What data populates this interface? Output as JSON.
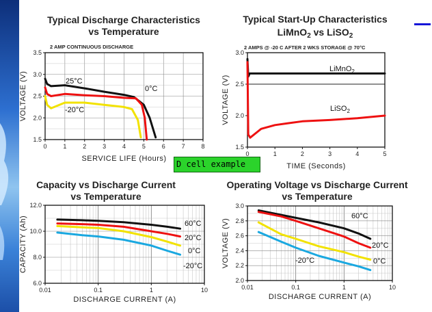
{
  "overlay_label": "D cell example",
  "colors": {
    "black": "#111111",
    "red": "#ee1111",
    "yellow": "#f2e200",
    "blue": "#1aa8e0",
    "link": "#1515d8"
  },
  "chart_data": [
    {
      "type": "line",
      "title": "Typical Discharge Characteristics\nvs Temperature",
      "subtitle": "2 AMP CONTINUOUS DISCHARGE",
      "xlabel": "SERVICE LIFE (Hours)",
      "ylabel": "VOLTAGE (V)",
      "xlim": [
        0,
        8
      ],
      "ylim": [
        1.5,
        3.5
      ],
      "xticks": [
        "0",
        "1",
        "2",
        "3",
        "4",
        "5",
        "6",
        "7",
        "8"
      ],
      "yticks": [
        "1.5",
        "2.0",
        "2.5",
        "3.0",
        "3.5"
      ],
      "grid": true,
      "series": [
        {
          "name": "25°C",
          "color": "black",
          "points": [
            [
              0,
              2.9
            ],
            [
              0.1,
              2.78
            ],
            [
              0.3,
              2.73
            ],
            [
              1,
              2.75
            ],
            [
              2,
              2.68
            ],
            [
              3,
              2.6
            ],
            [
              4,
              2.53
            ],
            [
              4.5,
              2.48
            ],
            [
              5,
              2.3
            ],
            [
              5.3,
              2.0
            ],
            [
              5.6,
              1.55
            ]
          ]
        },
        {
          "name": "0°C",
          "color": "red",
          "points": [
            [
              0,
              2.7
            ],
            [
              0.1,
              2.55
            ],
            [
              0.3,
              2.5
            ],
            [
              1,
              2.55
            ],
            [
              2,
              2.52
            ],
            [
              3,
              2.5
            ],
            [
              4,
              2.46
            ],
            [
              4.6,
              2.45
            ],
            [
              4.9,
              2.3
            ],
            [
              5.05,
              2.0
            ],
            [
              5.15,
              1.5
            ]
          ]
        },
        {
          "name": "-20°C",
          "color": "yellow",
          "points": [
            [
              0,
              2.5
            ],
            [
              0.1,
              2.3
            ],
            [
              0.3,
              2.22
            ],
            [
              1,
              2.35
            ],
            [
              2,
              2.35
            ],
            [
              3,
              2.3
            ],
            [
              4,
              2.25
            ],
            [
              4.4,
              2.2
            ],
            [
              4.7,
              1.95
            ],
            [
              4.85,
              1.55
            ]
          ]
        }
      ],
      "annotations": [
        "25°C",
        "0°C",
        "-20°C"
      ]
    },
    {
      "type": "line",
      "title": "Typical Start-Up Characteristics\nLiMnO2 vs LiSO2",
      "subtitle": "2 AMPS @ -20 C AFTER 2 WKS STORAGE @ 70°C",
      "xlabel": "TIME (Seconds)",
      "ylabel": "VOLTAGE (V)",
      "xlim": [
        0,
        5
      ],
      "ylim": [
        1.5,
        3.0
      ],
      "xticks": [
        "0",
        "1",
        "2",
        "3",
        "4",
        "5"
      ],
      "yticks": [
        "1.5",
        "2.0",
        "2.5",
        "3.0"
      ],
      "grid": false,
      "series": [
        {
          "name": "LiMnO2",
          "color": "black",
          "points": [
            [
              0,
              2.9
            ],
            [
              0.03,
              2.62
            ],
            [
              0.08,
              2.67
            ],
            [
              0.2,
              2.67
            ],
            [
              1,
              2.67
            ],
            [
              2,
              2.67
            ],
            [
              3,
              2.67
            ],
            [
              4,
              2.67
            ],
            [
              5,
              2.67
            ]
          ]
        },
        {
          "name": "LiSO2",
          "color": "red",
          "points": [
            [
              0,
              2.85
            ],
            [
              0.03,
              1.7
            ],
            [
              0.1,
              1.65
            ],
            [
              0.5,
              1.79
            ],
            [
              1,
              1.85
            ],
            [
              1.5,
              1.88
            ],
            [
              2,
              1.91
            ],
            [
              3,
              1.93
            ],
            [
              4,
              1.96
            ],
            [
              5,
              2.0
            ]
          ]
        }
      ],
      "annotations": [
        "LiMnO2",
        "LiSO2"
      ]
    },
    {
      "type": "line",
      "title": "Capacity vs Discharge Current\nvs Temperature",
      "xlabel": "DISCHARGE CURRENT (A)",
      "ylabel": "CAPACITY (Ah)",
      "xscale": "log",
      "xlim": [
        0.01,
        10
      ],
      "ylim": [
        6.0,
        12.0
      ],
      "xticks": [
        "0.01",
        "0.1",
        "1",
        "10"
      ],
      "yticks": [
        "6.0",
        "8.0",
        "10.0",
        "12.0"
      ],
      "grid": true,
      "series": [
        {
          "name": "60°C",
          "color": "black",
          "points": [
            [
              0.017,
              10.9
            ],
            [
              0.05,
              10.85
            ],
            [
              0.1,
              10.8
            ],
            [
              0.3,
              10.7
            ],
            [
              1,
              10.5
            ],
            [
              2,
              10.35
            ],
            [
              3.5,
              10.2
            ]
          ]
        },
        {
          "name": "20°C",
          "color": "red",
          "points": [
            [
              0.017,
              10.6
            ],
            [
              0.05,
              10.55
            ],
            [
              0.1,
              10.5
            ],
            [
              0.3,
              10.35
            ],
            [
              1,
              10.0
            ],
            [
              2,
              9.8
            ],
            [
              3.5,
              9.6
            ]
          ]
        },
        {
          "name": "0°C",
          "color": "yellow",
          "points": [
            [
              0.017,
              10.4
            ],
            [
              0.05,
              10.3
            ],
            [
              0.1,
              10.25
            ],
            [
              0.3,
              10.0
            ],
            [
              1,
              9.55
            ],
            [
              2,
              9.2
            ],
            [
              3.5,
              8.9
            ]
          ]
        },
        {
          "name": "-20°C",
          "color": "blue",
          "points": [
            [
              0.017,
              9.9
            ],
            [
              0.05,
              9.7
            ],
            [
              0.1,
              9.6
            ],
            [
              0.3,
              9.35
            ],
            [
              1,
              8.9
            ],
            [
              2,
              8.5
            ],
            [
              3.5,
              8.2
            ]
          ]
        }
      ],
      "annotations": [
        "60°C",
        "20°C",
        "0°C",
        "-20°C"
      ]
    },
    {
      "type": "line",
      "title": "Operating Voltage vs Discharge Current\nvs Temperature",
      "xlabel": "DISCHARGE CURRENT (A)",
      "ylabel": "VOLTAGE (V)",
      "xscale": "log",
      "xlim": [
        0.01,
        10
      ],
      "ylim": [
        2.0,
        3.0
      ],
      "xticks": [
        "0.01",
        "0.1",
        "1",
        "10"
      ],
      "yticks": [
        "2.0",
        "2.2",
        "2.4",
        "2.6",
        "2.8",
        "3.0"
      ],
      "grid": true,
      "series": [
        {
          "name": "60°C",
          "color": "black",
          "points": [
            [
              0.017,
              2.94
            ],
            [
              0.05,
              2.88
            ],
            [
              0.1,
              2.84
            ],
            [
              0.3,
              2.78
            ],
            [
              1,
              2.7
            ],
            [
              2,
              2.63
            ],
            [
              3.5,
              2.56
            ]
          ]
        },
        {
          "name": "20°C",
          "color": "red",
          "points": [
            [
              0.017,
              2.92
            ],
            [
              0.05,
              2.86
            ],
            [
              0.1,
              2.8
            ],
            [
              0.3,
              2.7
            ],
            [
              1,
              2.59
            ],
            [
              2,
              2.5
            ],
            [
              3.5,
              2.44
            ]
          ]
        },
        {
          "name": "0°C",
          "color": "yellow",
          "points": [
            [
              0.017,
              2.78
            ],
            [
              0.05,
              2.62
            ],
            [
              0.1,
              2.56
            ],
            [
              0.3,
              2.46
            ],
            [
              1,
              2.38
            ],
            [
              2,
              2.32
            ],
            [
              3.5,
              2.28
            ]
          ]
        },
        {
          "name": "-20°C",
          "color": "blue",
          "points": [
            [
              0.017,
              2.65
            ],
            [
              0.05,
              2.52
            ],
            [
              0.1,
              2.44
            ],
            [
              0.3,
              2.33
            ],
            [
              1,
              2.24
            ],
            [
              2,
              2.19
            ],
            [
              3.5,
              2.14
            ]
          ]
        }
      ],
      "annotations": [
        "60°C",
        "20°C",
        "-20°C",
        "0°C"
      ]
    }
  ]
}
